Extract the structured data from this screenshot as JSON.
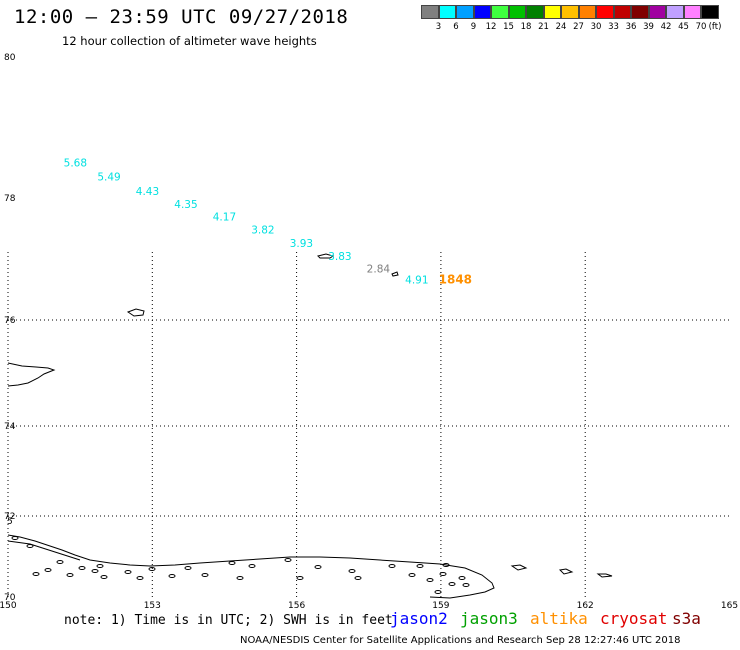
{
  "header": {
    "title": "12:00 – 23:59 UTC 09/27/2018",
    "subtitle": "12 hour collection of altimeter wave heights"
  },
  "legend": {
    "unit": "(ft)",
    "bins": [
      {
        "color": "#808080",
        "label": "3"
      },
      {
        "color": "#00ffff",
        "label": "6"
      },
      {
        "color": "#00a0ff",
        "label": "9"
      },
      {
        "color": "#0000ff",
        "label": "12"
      },
      {
        "color": "#40ff40",
        "label": "15"
      },
      {
        "color": "#00c000",
        "label": "18"
      },
      {
        "color": "#008000",
        "label": "21"
      },
      {
        "color": "#ffff00",
        "label": "24"
      },
      {
        "color": "#ffc000",
        "label": "27"
      },
      {
        "color": "#ff8000",
        "label": "30"
      },
      {
        "color": "#ff0000",
        "label": "33"
      },
      {
        "color": "#c00000",
        "label": "36"
      },
      {
        "color": "#800000",
        "label": "39"
      },
      {
        "color": "#a000a0",
        "label": "42"
      },
      {
        "color": "#c0a0ff",
        "label": "45"
      },
      {
        "color": "#ff80ff",
        "label": "70"
      },
      {
        "color": "#000000",
        "label": ""
      }
    ]
  },
  "map": {
    "lat_labels": [
      "80",
      "78",
      "76",
      "74",
      "72",
      "70"
    ],
    "lon_labels": [
      "150",
      "153",
      "156",
      "159",
      "162",
      "165"
    ],
    "stray_label": "5",
    "observations": [
      {
        "lon": 151.4,
        "lat": 78.45,
        "value": "5.68",
        "color": "#00e0e0"
      },
      {
        "lon": 152.1,
        "lat": 78.25,
        "value": "5.49",
        "color": "#00e0e0"
      },
      {
        "lon": 152.9,
        "lat": 78.04,
        "value": "4.43",
        "color": "#00e0e0"
      },
      {
        "lon": 153.7,
        "lat": 77.84,
        "value": "4.35",
        "color": "#00e0e0"
      },
      {
        "lon": 154.5,
        "lat": 77.63,
        "value": "4.17",
        "color": "#00e0e0"
      },
      {
        "lon": 155.3,
        "lat": 77.42,
        "value": "3.82",
        "color": "#00e0e0"
      },
      {
        "lon": 156.1,
        "lat": 77.2,
        "value": "3.93",
        "color": "#00e0e0"
      },
      {
        "lon": 156.9,
        "lat": 76.98,
        "value": "3.83",
        "color": "#00e0e0"
      },
      {
        "lon": 157.7,
        "lat": 76.78,
        "value": "2.84",
        "color": "#808080"
      },
      {
        "lon": 158.5,
        "lat": 76.6,
        "value": "4.91",
        "color": "#00e0e0"
      },
      {
        "lon": 159.3,
        "lat": 76.6,
        "value": "1848",
        "color": "#ff9000"
      }
    ]
  },
  "note": "note: 1) Time is in UTC; 2) SWH is in feet",
  "satellites": [
    {
      "name": "jason2",
      "color": "#0000ff"
    },
    {
      "name": "jason3",
      "color": "#00a000"
    },
    {
      "name": "altika",
      "color": "#ff9000"
    },
    {
      "name": "cryosat",
      "color": "#e00000"
    },
    {
      "name": "s3a",
      "color": "#800000"
    }
  ],
  "footer": "NOAA/NESDIS Center for Satellite Applications and Research    Sep 28 12:27:46 UTC 2018"
}
